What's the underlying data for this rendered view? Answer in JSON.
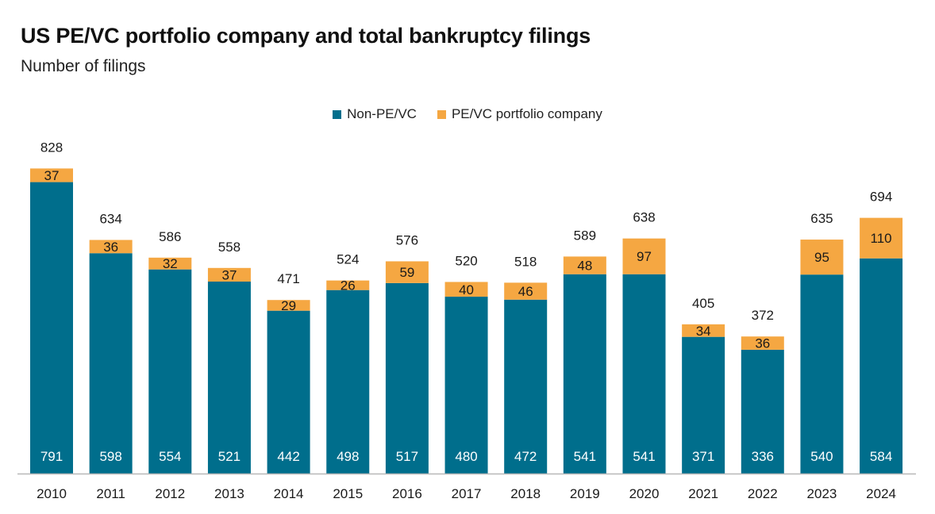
{
  "chart_data": {
    "type": "bar",
    "stacked": true,
    "title": "US PE/VC portfolio company and total bankruptcy filings",
    "subtitle": "Number of filings",
    "categories": [
      "2010",
      "2011",
      "2012",
      "2013",
      "2014",
      "2015",
      "2016",
      "2017",
      "2018",
      "2019",
      "2020",
      "2021",
      "2022",
      "2023",
      "2024"
    ],
    "series": [
      {
        "name": "Non-PE/VC",
        "color": "#006e8c",
        "values": [
          791,
          598,
          554,
          521,
          442,
          498,
          517,
          480,
          472,
          541,
          541,
          371,
          336,
          540,
          584
        ]
      },
      {
        "name": "PE/VC portfolio company",
        "color": "#f5a742",
        "values": [
          37,
          36,
          32,
          37,
          29,
          26,
          59,
          40,
          46,
          48,
          97,
          34,
          36,
          95,
          110
        ]
      }
    ],
    "totals": [
      828,
      634,
      586,
      558,
      471,
      524,
      576,
      520,
      518,
      589,
      638,
      405,
      372,
      635,
      694
    ],
    "legend_position": "top-center",
    "grid": false
  }
}
